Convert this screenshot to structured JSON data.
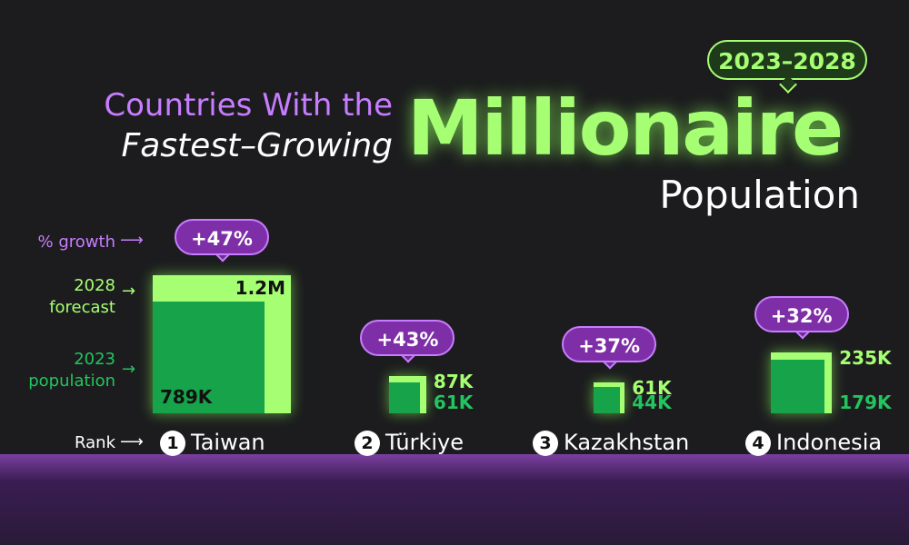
{
  "header": {
    "badge": "2023–2028",
    "title_line1": "Countries With the",
    "title_line2": "Fastest–Growing",
    "title_big": "Millionaire",
    "title_sub": "Population"
  },
  "chart_data": {
    "type": "nested-square",
    "categories": [
      "Taiwan",
      "Türkiye",
      "Kazakhstan",
      "Indonesia"
    ],
    "ranks": [
      1,
      2,
      3,
      4
    ],
    "rank_label": "Rank",
    "series": [
      {
        "name": "2028 forecast",
        "color": "#a6ff73",
        "values": [
          1200000,
          87000,
          61000,
          235000
        ],
        "value_labels": [
          "1.2M",
          "87K",
          "61K",
          "235K"
        ]
      },
      {
        "name": "2023 population",
        "color": "#16a34a",
        "values": [
          789000,
          61000,
          44000,
          179000
        ],
        "value_labels": [
          "789K",
          "61K",
          "44K",
          "179K"
        ]
      }
    ],
    "growth": {
      "name": "% growth",
      "color": "#7e2fa8",
      "values": [
        47,
        43,
        37,
        32
      ],
      "value_labels": [
        "+47%",
        "+43%",
        "+37%",
        "+32%"
      ]
    }
  }
}
